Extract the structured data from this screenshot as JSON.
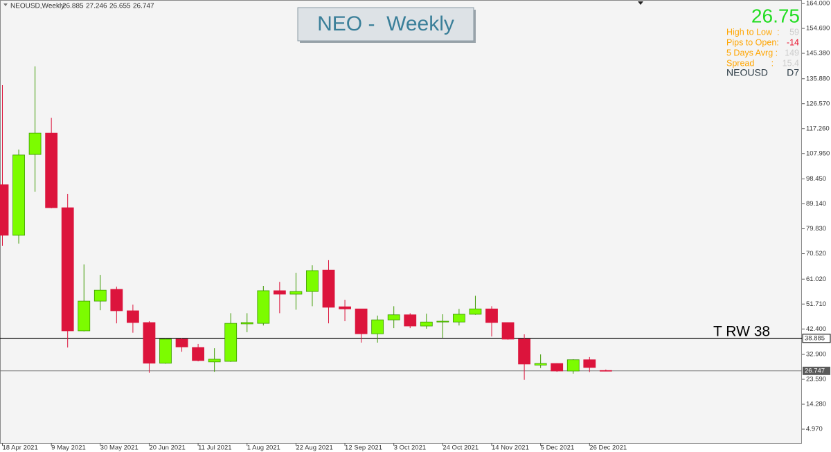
{
  "chart_data": {
    "type": "candlestick",
    "header": "NEOUSD,Weekly",
    "title": "NEO -  Weekly",
    "categories": [
      "18 Apr 2021",
      null,
      null,
      "9 May 2021",
      null,
      null,
      "30 May 2021",
      null,
      null,
      "20 Jun 2021",
      null,
      null,
      "11 Jul 2021",
      null,
      null,
      "1 Aug 2021",
      null,
      null,
      "22 Aug 2021",
      null,
      null,
      "12 Sep 2021",
      null,
      null,
      "3 Oct 2021",
      null,
      null,
      "24 Oct 2021",
      null,
      null,
      "14 Nov 2021",
      null,
      null,
      "5 Dec 2021",
      null,
      null,
      "26 Dec 2021",
      null
    ],
    "open": [
      96.3,
      77.4,
      107.6,
      115.6,
      87.7,
      41.7,
      52.8,
      57.2,
      49.2,
      44.8,
      29.6,
      38.6,
      35.5,
      30.1,
      30.3,
      44.3,
      44.5,
      56.7,
      55.4,
      56.4,
      64.4,
      50.7,
      49.9,
      40.6,
      45.8,
      47.7,
      43.5,
      45.0,
      45.0,
      47.9,
      49.9,
      44.8,
      38.6,
      28.9,
      29.5,
      26.7,
      30.9,
      26.885
    ],
    "high": [
      133.5,
      109.4,
      140.5,
      121.3,
      92.9,
      66.5,
      62.6,
      58.2,
      51.5,
      45.3,
      38.8,
      39.0,
      36.8,
      35.2,
      48.3,
      48.3,
      58.5,
      60.0,
      63.4,
      66.2,
      68.1,
      53.3,
      49.9,
      47.4,
      50.9,
      48.3,
      48.1,
      47.9,
      49.9,
      54.8,
      50.9,
      44.9,
      40.4,
      32.9,
      29.6,
      31.1,
      31.9,
      27.246
    ],
    "low": [
      73.5,
      74.3,
      93.7,
      87.5,
      35.5,
      41.5,
      49.4,
      44.5,
      41.0,
      26.0,
      29.4,
      33.9,
      30.3,
      26.4,
      30.1,
      41.2,
      43.7,
      48.3,
      49.6,
      50.9,
      44.5,
      45.3,
      37.3,
      37.3,
      42.7,
      42.7,
      42.5,
      39.1,
      43.7,
      47.7,
      39.6,
      38.4,
      23.4,
      27.8,
      26.4,
      25.7,
      26.3,
      26.655
    ],
    "close": [
      77.4,
      107.4,
      115.6,
      87.7,
      41.7,
      52.8,
      56.9,
      49.2,
      44.8,
      29.6,
      38.6,
      35.7,
      30.6,
      31.1,
      44.5,
      44.8,
      56.7,
      55.4,
      56.4,
      64.2,
      50.5,
      49.9,
      40.6,
      45.8,
      47.7,
      43.5,
      45.0,
      45.3,
      47.9,
      49.9,
      44.8,
      38.6,
      29.3,
      29.5,
      26.7,
      30.9,
      28.0,
      26.747
    ],
    "up_color": "#7cfc00",
    "down_color": "#dc143c",
    "ylim": [
      -0.2,
      165.3
    ],
    "yticks": [
      {
        "value": 164.0,
        "label": "164.000"
      },
      {
        "value": 154.69,
        "label": "154.690"
      },
      {
        "value": 145.38,
        "label": "145.380"
      },
      {
        "value": 135.88,
        "label": "135.880"
      },
      {
        "value": 126.57,
        "label": "126.570"
      },
      {
        "value": 117.26,
        "label": "117.260"
      },
      {
        "value": 107.95,
        "label": "107.950"
      },
      {
        "value": 98.45,
        "label": "98.450"
      },
      {
        "value": 89.14,
        "label": "89.140"
      },
      {
        "value": 79.83,
        "label": "79.830"
      },
      {
        "value": 70.52,
        "label": "70.520"
      },
      {
        "value": 61.02,
        "label": "61.020"
      },
      {
        "value": 51.71,
        "label": "51.710"
      },
      {
        "value": 42.4,
        "label": "42.400"
      },
      {
        "value": 32.9,
        "label": "32.900"
      },
      {
        "value": 23.59,
        "label": "23.590"
      },
      {
        "value": 14.28,
        "label": "14.280"
      },
      {
        "value": 4.97,
        "label": "4.970"
      }
    ],
    "level": {
      "label": "T RW 38",
      "value": 38.885
    },
    "info": {
      "price": 26.75,
      "rows": [
        {
          "label": "High to Low  :",
          "value": 59
        },
        {
          "label": "Pips to Open:",
          "value": -14
        },
        {
          "label": "5 Days Avrg :",
          "value": 149
        },
        {
          "label": "Spread       :",
          "value": 15.4
        }
      ],
      "symbol": "NEOUSD",
      "timeframe": "D7"
    }
  }
}
